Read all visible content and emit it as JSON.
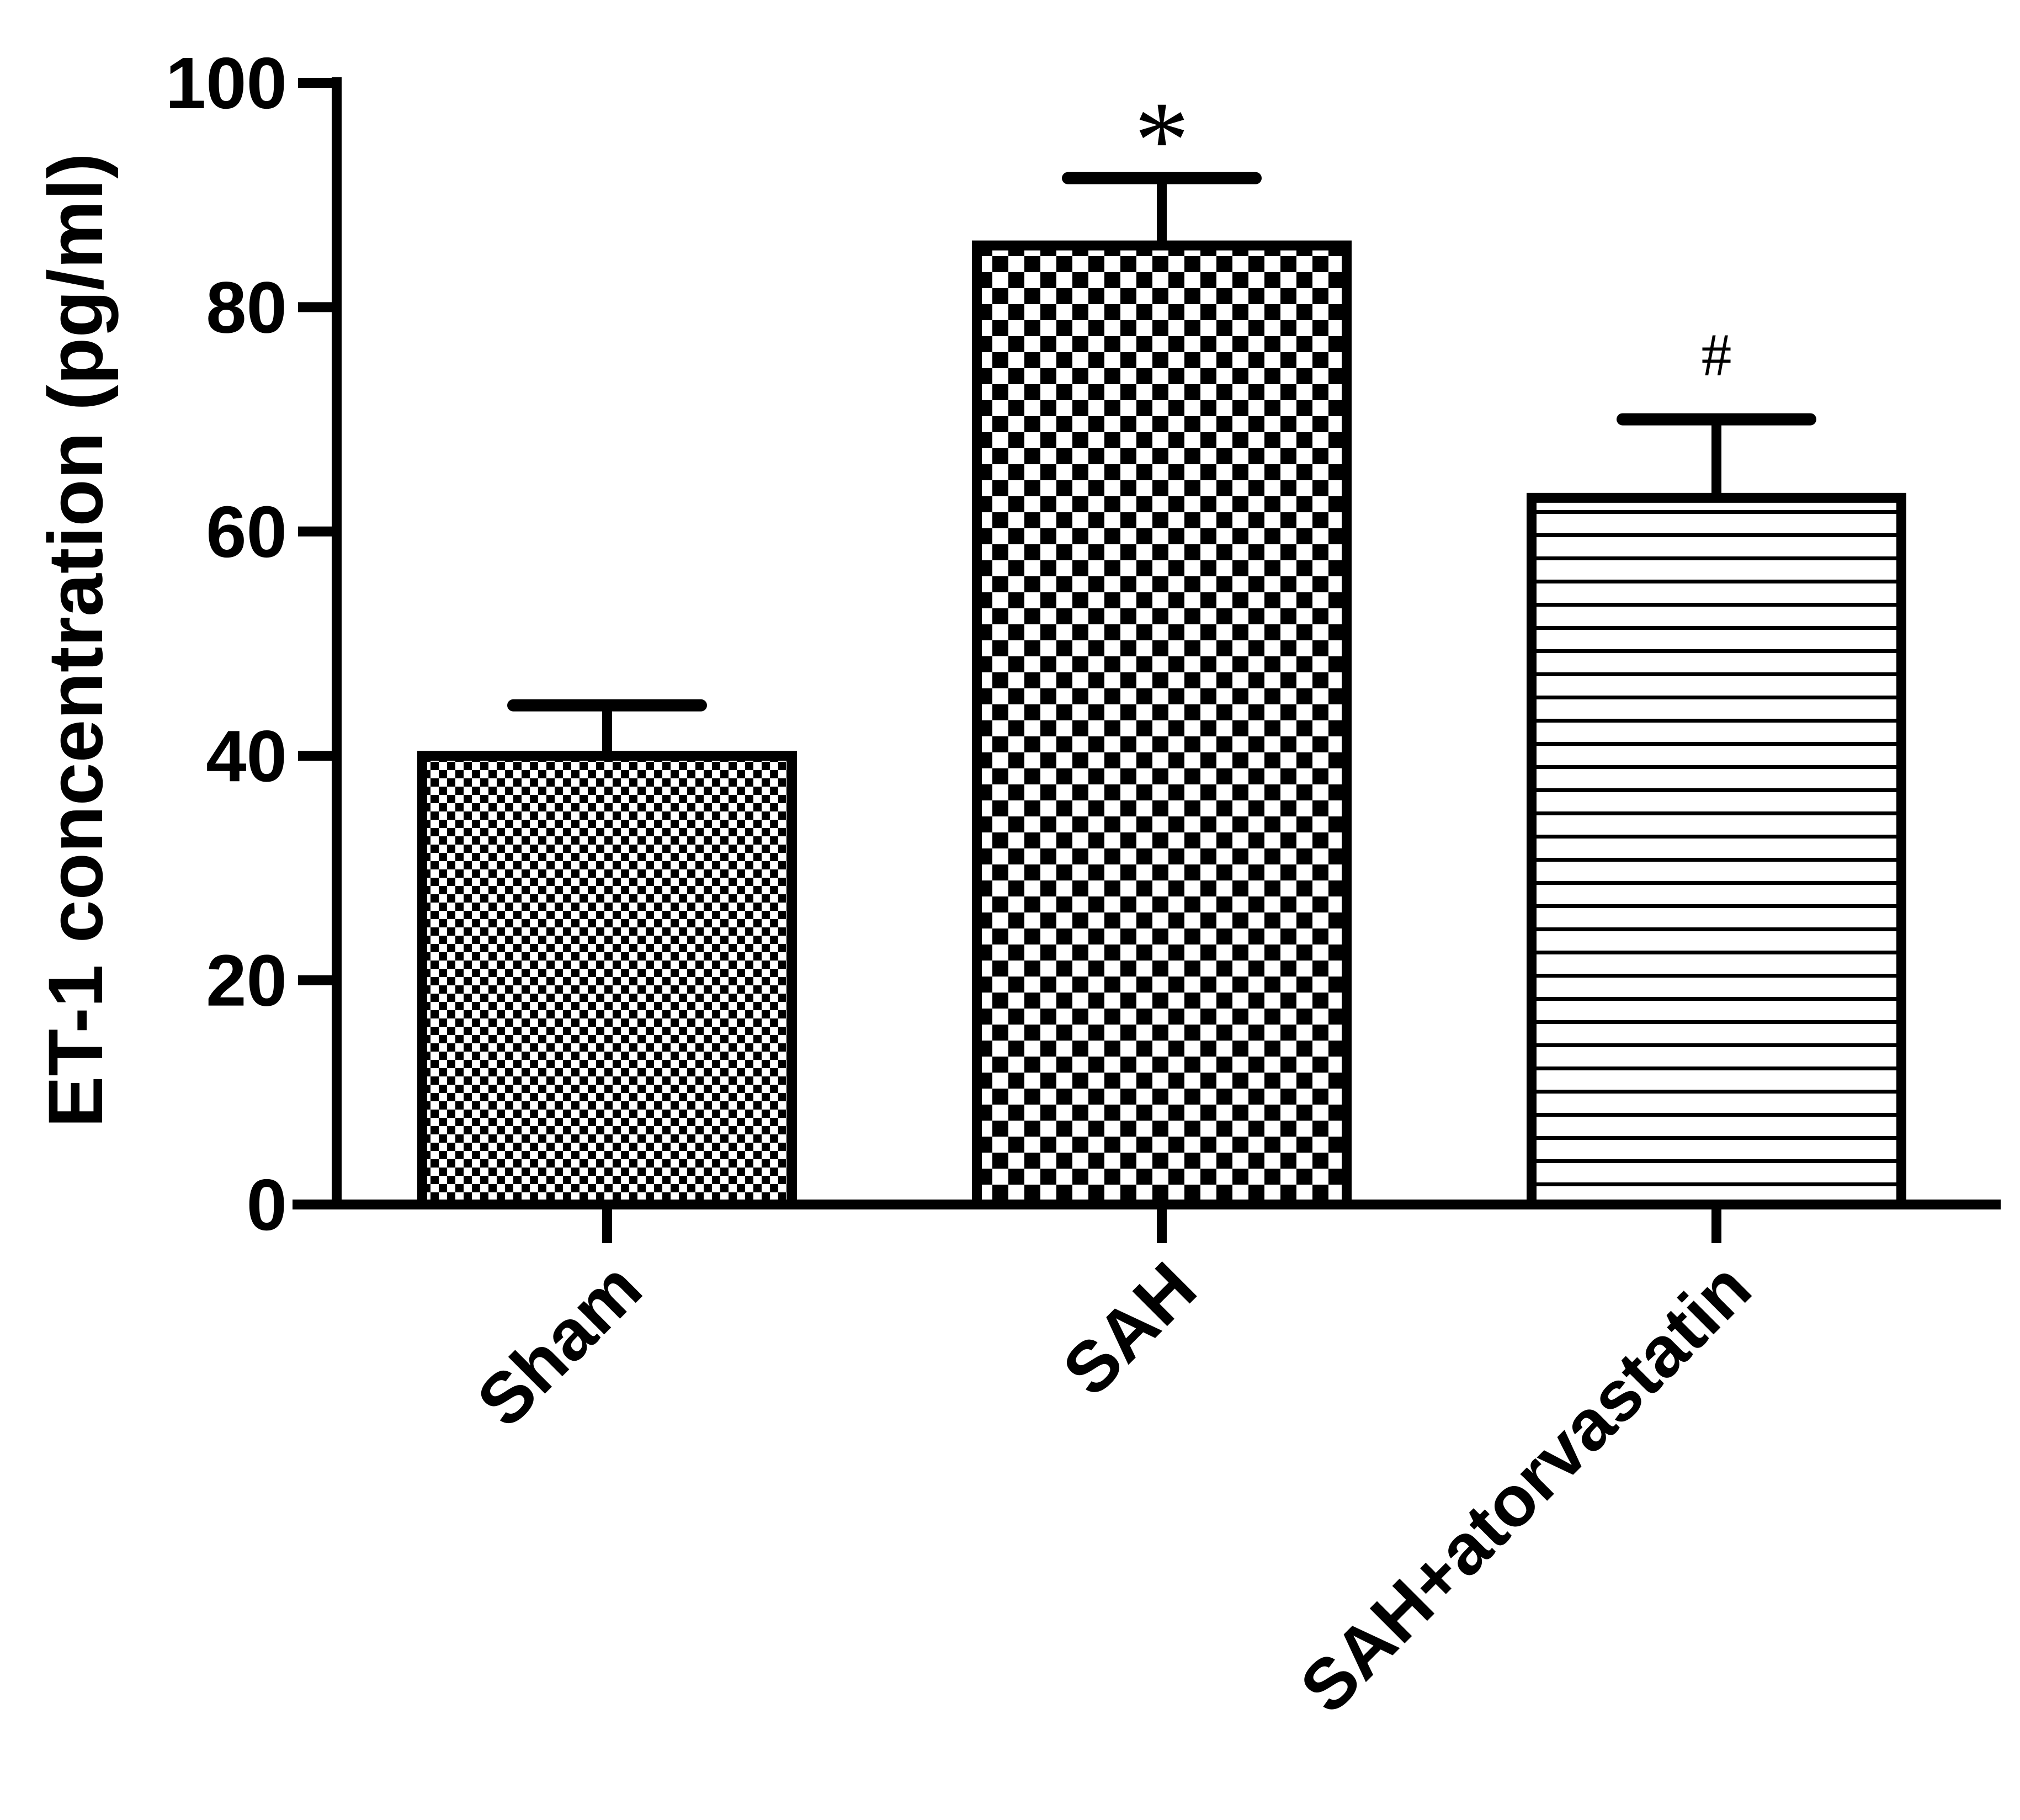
{
  "chart_data": {
    "type": "bar",
    "categories": [
      "Sham",
      "SAH",
      "SAH+atorvastatin"
    ],
    "values": [
      40,
      85.5,
      63
    ],
    "errors": [
      4.5,
      6,
      7
    ],
    "annotations": [
      "",
      "*",
      "#"
    ],
    "patterns": [
      "fine-checker",
      "coarse-checker",
      "horizontal-lines"
    ],
    "title": "",
    "xlabel": "",
    "ylabel": "ET-1 concentration  (pg/ml)",
    "ylim": [
      0,
      100
    ],
    "yticks": [
      "0",
      "20",
      "40",
      "60",
      "80",
      "100"
    ],
    "grid": false,
    "colors": {
      "ink": "#000000",
      "background": "#ffffff"
    }
  }
}
